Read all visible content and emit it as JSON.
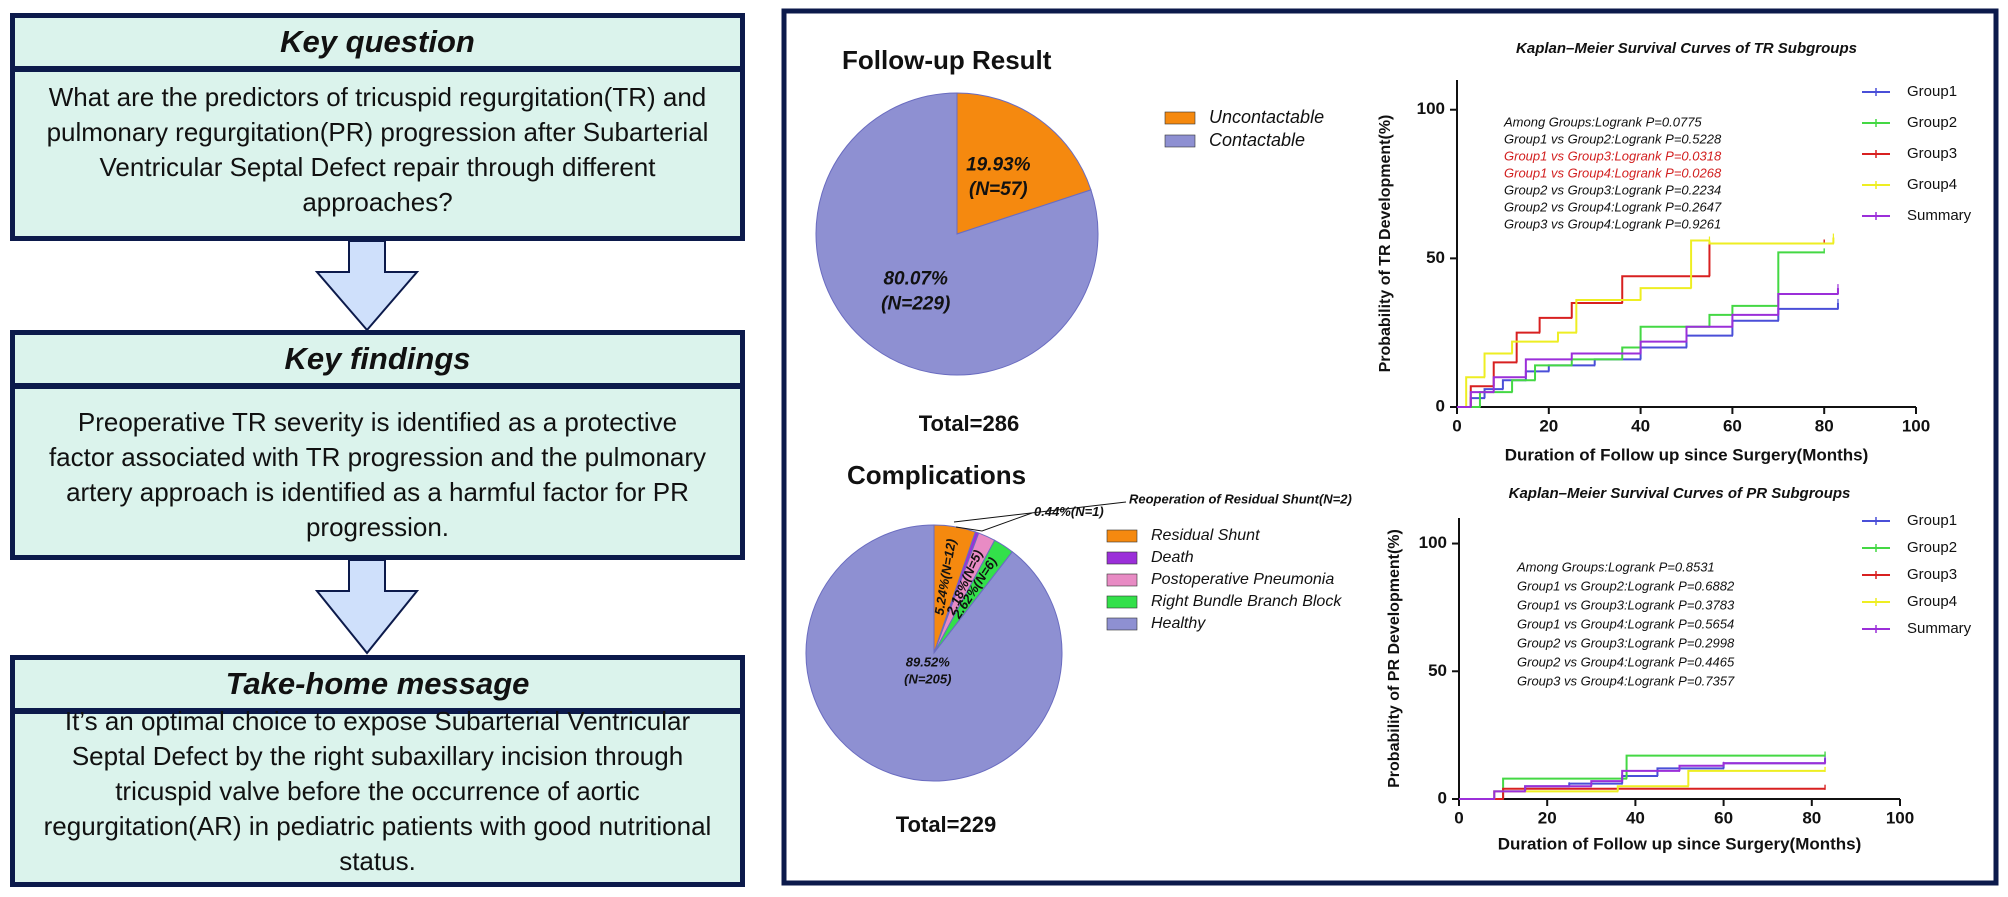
{
  "flow": {
    "boxes": [
      {
        "title": "Key question",
        "text": "What are the predictors of tricuspid regurgitation(TR) and pulmonary regurgitation(PR) progression after Subarterial Ventricular Septal Defect repair through different approaches?"
      },
      {
        "title": "Key findings",
        "text": "Preoperative TR severity is identified as a protective factor associated with TR progression and the pulmonary artery approach is identified as a harmful factor for PR progression."
      },
      {
        "title": "Take-home message",
        "text": "It’s an optimal choice to expose Subarterial Ventricular Septal Defect by the right subaxillary incision through tricuspid valve before the occurrence of aortic regurgitation(AR) in pediatric patients with good nutritional status."
      }
    ]
  },
  "chart_data": [
    {
      "type": "pie",
      "title": "Follow-up Result",
      "categories": [
        "Uncontactable",
        "Contactable"
      ],
      "values": [
        19.93,
        80.07
      ],
      "value_labels": [
        "19.93%",
        "80.07%"
      ],
      "n_labels": [
        "(N=57)",
        "(N=229)"
      ],
      "colors": [
        "#f5890f",
        "#8e90d2"
      ],
      "total_label": "Total=286"
    },
    {
      "type": "pie",
      "title": "Complications",
      "categories": [
        "Residual Shunt",
        "Death",
        "Postoperative Pneumonia",
        "Right Bundle Branch Block",
        "Healthy"
      ],
      "values": [
        5.24,
        0.44,
        2.18,
        2.62,
        89.52
      ],
      "value_labels": [
        "5.24%",
        "0.44%",
        "2.18%",
        "2.62%",
        "89.52%"
      ],
      "n_labels": [
        "(N=12)",
        "(N=1)",
        "(N=5)",
        "(N=6)",
        "(N=205)"
      ],
      "colors": [
        "#f5890f",
        "#9b2fd9",
        "#e88bc4",
        "#33e04a",
        "#8e90d2"
      ],
      "annotation": "Reoperation of Residual Shunt(N=2)",
      "total_label": "Total=229"
    },
    {
      "type": "line",
      "step": true,
      "title": "Kaplan–Meier Survival Curves of TR Subgroups",
      "xlabel": "Duration of Follow up since Surgery(Months)",
      "ylabel": "Probability of TR Development(%)",
      "xlim": [
        0,
        100
      ],
      "xticks": [
        0,
        20,
        40,
        60,
        80,
        100
      ],
      "ylim": [
        0,
        110
      ],
      "yticks": [
        0,
        50,
        100
      ],
      "annotations": [
        {
          "text": "Among Groups:Logrank P=0.0775",
          "color": "#111111"
        },
        {
          "text": "Group1 vs Group2:Logrank P=0.5228",
          "color": "#111111"
        },
        {
          "text": "Group1 vs Group3:Logrank P=0.0318",
          "color": "#d21f1f"
        },
        {
          "text": "Group1 vs Group4:Logrank P=0.0268",
          "color": "#d21f1f"
        },
        {
          "text": "Group2 vs Group3:Logrank P=0.2234",
          "color": "#111111"
        },
        {
          "text": "Group2 vs Group4:Logrank P=0.2647",
          "color": "#111111"
        },
        {
          "text": "Group3 vs Group4:Logrank P=0.9261",
          "color": "#111111"
        }
      ],
      "series": [
        {
          "name": "Group1",
          "color": "#4a4fd8",
          "x": [
            0,
            3,
            6,
            10,
            15,
            20,
            30,
            40,
            50,
            60,
            70,
            83
          ],
          "values": [
            0,
            3,
            6,
            9,
            12,
            14,
            16,
            20,
            24,
            29,
            33,
            35
          ]
        },
        {
          "name": "Group2",
          "color": "#44d844",
          "x": [
            0,
            5,
            12,
            17,
            25,
            36,
            40,
            55,
            60,
            70,
            80
          ],
          "values": [
            0,
            5,
            9,
            14,
            16,
            20,
            27,
            31,
            34,
            52,
            52
          ]
        },
        {
          "name": "Group3",
          "color": "#d82020",
          "x": [
            0,
            3,
            8,
            13,
            18,
            25,
            36,
            55,
            80
          ],
          "values": [
            0,
            7,
            15,
            25,
            30,
            35,
            44,
            55,
            55
          ]
        },
        {
          "name": "Group4",
          "color": "#eeee22",
          "x": [
            0,
            2,
            6,
            12,
            22,
            26,
            40,
            51,
            55,
            82
          ],
          "values": [
            0,
            10,
            18,
            22,
            25,
            36,
            40,
            56,
            55,
            57
          ]
        },
        {
          "name": "Summary",
          "color": "#9b2fd9",
          "x": [
            0,
            3,
            8,
            15,
            25,
            40,
            50,
            60,
            70,
            83
          ],
          "values": [
            0,
            5,
            10,
            16,
            18,
            22,
            27,
            31,
            38,
            40
          ]
        }
      ]
    },
    {
      "type": "line",
      "step": true,
      "title": "Kaplan–Meier Survival Curves of PR Subgroups",
      "xlabel": "Duration of Follow up since Surgery(Months)",
      "ylabel": "Probability of PR Development(%)",
      "xlim": [
        0,
        100
      ],
      "xticks": [
        0,
        20,
        40,
        60,
        80,
        100
      ],
      "ylim": [
        0,
        110
      ],
      "yticks": [
        0,
        50,
        100
      ],
      "annotations": [
        {
          "text": "Among Groups:Logrank P=0.8531",
          "color": "#111111"
        },
        {
          "text": "Group1 vs Group2:Logrank P=0.6882",
          "color": "#111111"
        },
        {
          "text": "Group1 vs Group3:Logrank P=0.3783",
          "color": "#111111"
        },
        {
          "text": "Group1 vs Group4:Logrank P=0.5654",
          "color": "#111111"
        },
        {
          "text": "Group2 vs Group3:Logrank P=0.2998",
          "color": "#111111"
        },
        {
          "text": "Group2 vs Group4:Logrank P=0.4465",
          "color": "#111111"
        },
        {
          "text": "Group3 vs Group4:Logrank P=0.7357",
          "color": "#111111"
        }
      ],
      "series": [
        {
          "name": "Group1",
          "color": "#4a4fd8",
          "x": [
            0,
            8,
            15,
            25,
            37,
            45,
            60,
            83
          ],
          "values": [
            0,
            3,
            5,
            6,
            9,
            12,
            14,
            16
          ]
        },
        {
          "name": "Group2",
          "color": "#44d844",
          "x": [
            0,
            10,
            38,
            83
          ],
          "values": [
            0,
            8,
            17,
            17
          ]
        },
        {
          "name": "Group3",
          "color": "#d82020",
          "x": [
            0,
            10,
            83
          ],
          "values": [
            0,
            4,
            4
          ]
        },
        {
          "name": "Group4",
          "color": "#eeee22",
          "x": [
            0,
            8,
            36,
            52,
            83
          ],
          "values": [
            0,
            3,
            5,
            11,
            11
          ]
        },
        {
          "name": "Summary",
          "color": "#9b2fd9",
          "x": [
            0,
            8,
            15,
            30,
            37,
            50,
            60,
            83
          ],
          "values": [
            0,
            3,
            5,
            7,
            11,
            13,
            14,
            15
          ]
        }
      ]
    }
  ]
}
